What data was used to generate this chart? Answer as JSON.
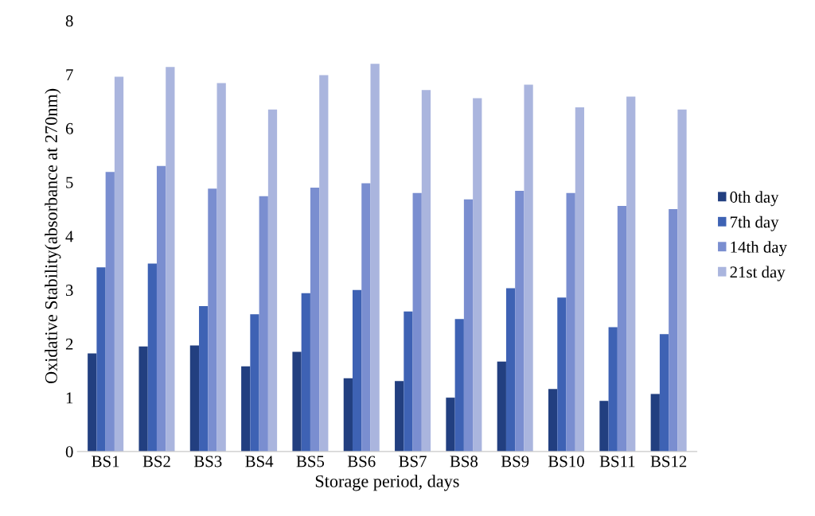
{
  "chart_data": {
    "type": "bar",
    "xlabel": "Storage period, days",
    "ylabel": "Oxidative Stability(absorbance at 270nm)",
    "categories": [
      "BS1",
      "BS2",
      "BS3",
      "BS4",
      "BS5",
      "BS6",
      "BS7",
      "BS8",
      "BS9",
      "BS10",
      "BS11",
      "BS12"
    ],
    "series": [
      {
        "name": "0th day",
        "color": "#223f80",
        "values": [
          1.82,
          1.95,
          1.97,
          1.58,
          1.85,
          1.36,
          1.31,
          1.0,
          1.67,
          1.16,
          0.94,
          1.07
        ]
      },
      {
        "name": "7th day",
        "color": "#3e62b4",
        "values": [
          3.42,
          3.49,
          2.7,
          2.55,
          2.94,
          3.0,
          2.6,
          2.46,
          3.03,
          2.86,
          2.31,
          2.18
        ]
      },
      {
        "name": "14th day",
        "color": "#7a8ed0",
        "values": [
          5.19,
          5.3,
          4.88,
          4.74,
          4.9,
          4.98,
          4.8,
          4.68,
          4.84,
          4.8,
          4.56,
          4.5
        ]
      },
      {
        "name": "21st day",
        "color": "#aab5de",
        "values": [
          6.96,
          7.14,
          6.84,
          6.35,
          6.99,
          7.2,
          6.71,
          6.56,
          6.81,
          6.39,
          6.59,
          6.35
        ]
      }
    ],
    "ylim": [
      0,
      8
    ],
    "yticks": [
      0,
      1,
      2,
      3,
      4,
      5,
      6,
      7,
      8
    ],
    "grid": false,
    "legend": "right"
  }
}
